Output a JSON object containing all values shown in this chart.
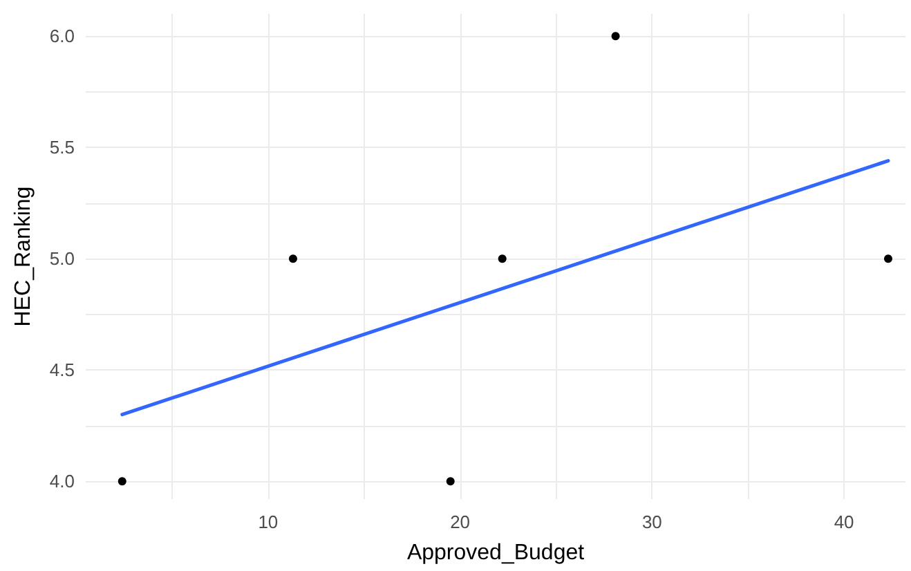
{
  "chart_data": {
    "type": "scatter",
    "xlabel": "Approved_Budget",
    "ylabel": "HEC_Ranking",
    "xlim": [
      0.5,
      43.2
    ],
    "xticks": [
      {
        "value": 5,
        "label": null
      },
      10,
      {
        "value": 15,
        "label": null
      },
      20,
      {
        "value": 25,
        "label": null
      },
      30,
      {
        "value": 35,
        "label": null
      },
      40
    ],
    "ylim": [
      3.92,
      6.1
    ],
    "yticks": [
      {
        "value": 4,
        "label": "4.0"
      },
      {
        "value": 4.25,
        "label": null
      },
      {
        "value": 4.5,
        "label": "4.5"
      },
      {
        "value": 4.75,
        "label": null
      },
      {
        "value": 5,
        "label": "5.0"
      },
      {
        "value": 5.25,
        "label": null
      },
      {
        "value": 5.5,
        "label": "5.5"
      },
      {
        "value": 5.75,
        "label": null
      },
      {
        "value": 6,
        "label": "6.0"
      }
    ],
    "grid": true,
    "marker": "circle",
    "series": [
      {
        "color": "#000000",
        "x": [
          2.4,
          11.3,
          19.5,
          22.2,
          28.1,
          42.3
        ],
        "values": [
          4,
          5,
          4,
          5,
          6,
          5
        ]
      },
      {
        "type": "line",
        "color": "#3366ff",
        "marker": "none",
        "x": [
          2.4,
          42.3
        ],
        "values": [
          4.3,
          5.44
        ]
      }
    ]
  }
}
